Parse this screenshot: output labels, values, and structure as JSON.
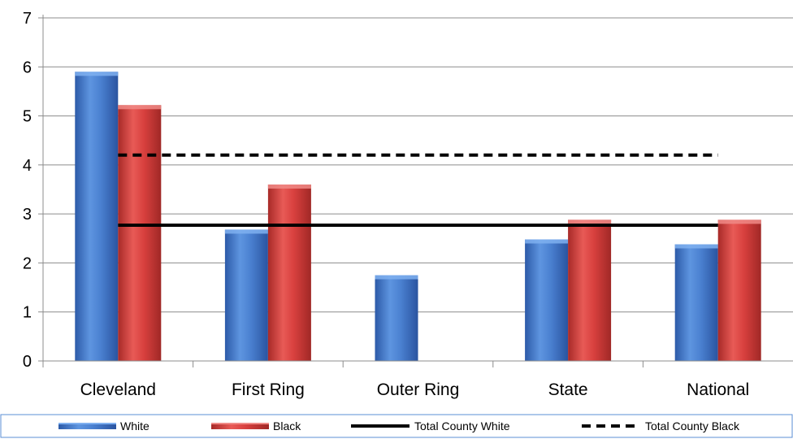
{
  "chart_data": {
    "type": "bar",
    "categories": [
      "Cleveland",
      "First Ring",
      "Outer Ring",
      "State",
      "National"
    ],
    "series": [
      {
        "name": "White",
        "values": [
          5.9,
          2.68,
          1.75,
          2.48,
          2.38
        ],
        "color": "#4a7fcf"
      },
      {
        "name": "Black",
        "values": [
          5.22,
          3.6,
          null,
          2.88,
          2.88
        ],
        "color": "#d8403e"
      }
    ],
    "reference_lines": [
      {
        "name": "Total County White",
        "value": 2.77,
        "style": "solid",
        "color": "#000000"
      },
      {
        "name": "Total County Black",
        "value": 4.2,
        "style": "dashed",
        "color": "#000000"
      }
    ],
    "ylim": [
      0,
      7
    ],
    "yticks": [
      "0",
      "1",
      "2",
      "3",
      "4",
      "5",
      "6",
      "7"
    ],
    "grid": true,
    "legend_position": "bottom",
    "title": "",
    "xlabel": "",
    "ylabel": ""
  }
}
